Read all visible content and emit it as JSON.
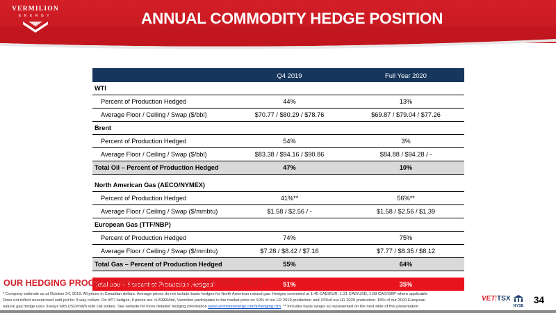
{
  "header": {
    "logo_name": "VERMILION",
    "logo_sub": "ENERGY",
    "title": "ANNUAL COMMODITY HEDGE POSITION"
  },
  "table": {
    "columns": [
      "",
      "Q4 2019",
      "Full Year 2020"
    ],
    "wti": {
      "heading": "WTI",
      "rows": [
        {
          "label": "Percent of Production Hedged",
          "q4": "44%",
          "fy": "13%"
        },
        {
          "label": "Average Floor / Ceiling / Swap ($/bbl)",
          "q4": "$70.77 / $80.29 / $78.76",
          "fy": "$69.87 / $79.04 / $77.26"
        }
      ]
    },
    "brent": {
      "heading": "Brent",
      "rows": [
        {
          "label": "Percent of Production Hedged",
          "q4": "54%",
          "fy": "3%"
        },
        {
          "label": "Average Floor / Ceiling / Swap ($/bbl)",
          "q4": "$83.38 / $94.16 / $90.86",
          "fy": "$84.88 / $94.28 / -"
        }
      ]
    },
    "total_oil": {
      "label": "Total Oil – Percent of Production Hedged",
      "q4": "47%",
      "fy": "10%"
    },
    "na_gas": {
      "heading": "North American Gas (AECO/NYMEX)",
      "rows": [
        {
          "label": "Percent of Production Hedged",
          "q4": "41%**",
          "fy": "56%**"
        },
        {
          "label": "Average Floor / Ceiling / Swap ($/mmbtu)",
          "q4": "$1.58 / $2.56 / -",
          "fy": "$1.58 / $2.56 / $1.39"
        }
      ]
    },
    "eu_gas": {
      "heading": "European Gas (TTF/NBP)",
      "rows": [
        {
          "label": "Percent of Production Hedged",
          "q4": "74%",
          "fy": "75%"
        },
        {
          "label": "Average Floor / Ceiling / Swap ($/mmbtu)",
          "q4": "$7.28 / $8.42 / $7.16",
          "fy": "$7.77 / $8.35 / $8.12"
        }
      ]
    },
    "total_gas": {
      "label": "Total Gas – Percent of Production Hedged",
      "q4": "55%",
      "fy": "64%"
    },
    "total_boe": {
      "label": "Total boe – Percent of Production Hedged*",
      "q4": "51%",
      "fy": "35%"
    }
  },
  "tagline": "OUR HEDGING PROGRAM REDUCES CASH FLOW VOLATILITY",
  "footnote": {
    "text1": "* Company estimate as at October 24, 2019. All prices in Canadian dollars. Average prices do not include basis hedges for North American natural gas. Hedges converted at 1.45 CAD/EUR, 1.31 CAD/USD, 1.68 CAD/GBP where applicable.",
    "text2": "Does not reflect unexercised sold put for 3-way collars. On WTI hedges, if prices are >US$60/bbl, Vermilion participates in the market price on 10% of our H2 2019 production and 10%of our H1 2020 production.  18% of our 2020 European",
    "text3": "natural gas hedge uses 3-ways with USD/mWh sold call strikes.  See website for more detailed hedging information",
    "link": "www.vermilionenergy.com/ir/hedging.cfm",
    "text4": ". ** Includes basis swaps as represented on the next slide of this presentation."
  },
  "footer": {
    "exchange1_prefix": "VET:",
    "exchange1": "TSX",
    "exchange2": "NYSE",
    "page_number": "34"
  },
  "colors": {
    "brand_red": "#d41f27",
    "header_navy": "#16365c",
    "total_gray": "#d9d9d9",
    "boe_red": "#e8141d"
  }
}
